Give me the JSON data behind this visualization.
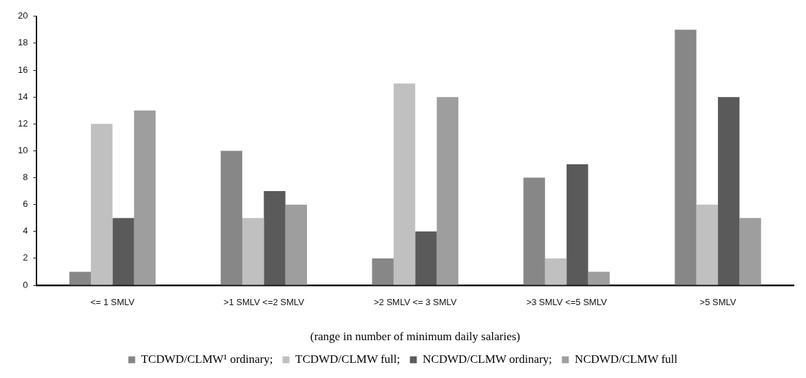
{
  "chart_data": {
    "type": "bar",
    "xlabel": "(range in number of minimum daily salaries)",
    "categories": [
      "<= 1 SMLV",
      ">1 SMLV <=2 SMLV",
      ">2 SMLV <= 3 SMLV",
      ">3 SMLV <=5 SMLV",
      ">5 SMLV"
    ],
    "series": [
      {
        "name": "TCDWD/CLMW¹ ordinary;",
        "color": "#878787",
        "values": [
          1,
          10,
          2,
          8,
          19
        ]
      },
      {
        "name": "TCDWD/CLMW full;",
        "color": "#c0c0c0",
        "values": [
          12,
          5,
          15,
          2,
          6
        ]
      },
      {
        "name": "NCDWD/CLMW ordinary;",
        "color": "#5a5a5a",
        "values": [
          5,
          7,
          4,
          9,
          14
        ]
      },
      {
        "name": "NCDWD/CLMW full",
        "color": "#9e9e9e",
        "values": [
          13,
          6,
          14,
          1,
          5
        ]
      }
    ],
    "ylim": [
      0,
      20
    ],
    "yticks": [
      0,
      2,
      4,
      6,
      8,
      10,
      12,
      14,
      16,
      18,
      20
    ],
    "grid": false,
    "legend": "bottom"
  }
}
